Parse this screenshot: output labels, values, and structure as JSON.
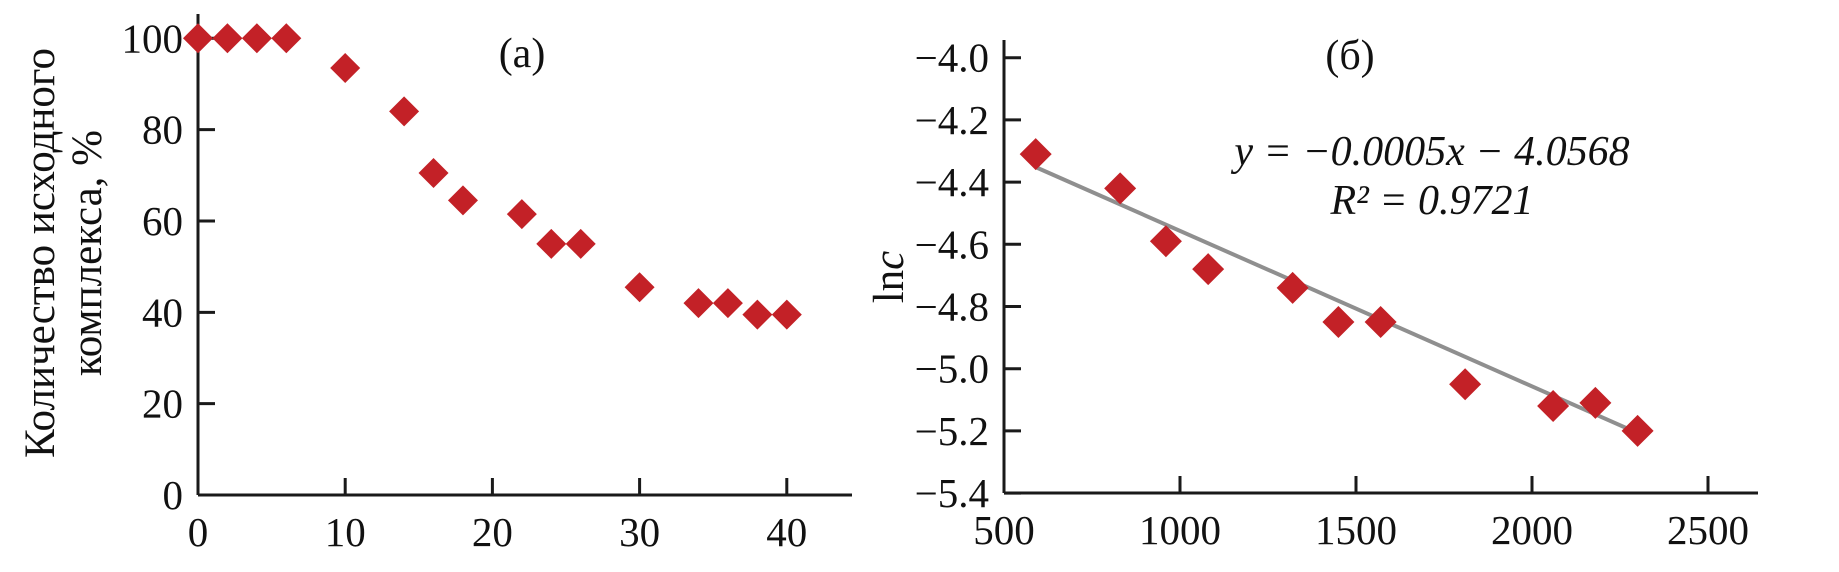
{
  "figure": {
    "background": "#ffffff",
    "point_color": "#c32127",
    "trend_color": "#8f8f8f",
    "axis_color": "#1a1a1a"
  },
  "chart_data": [
    {
      "type": "scatter",
      "title": "(а)",
      "xlabel": "",
      "ylabel": "Количество исходного комплекса, %",
      "ylabel_lines": [
        "Количество исходного",
        "комплекса, %"
      ],
      "x": [
        0,
        2,
        4,
        6,
        10,
        14,
        16,
        18,
        22,
        24,
        26,
        30,
        34,
        36,
        38,
        40
      ],
      "y": [
        100,
        100,
        100,
        100,
        93.5,
        84,
        70.5,
        64.5,
        61.5,
        55,
        55,
        45.5,
        42,
        42,
        39.5,
        39.5
      ],
      "xlim": [
        0,
        44
      ],
      "ylim": [
        0,
        105
      ],
      "x_tick_values": [
        0,
        10,
        20,
        30,
        40
      ],
      "x_tick_labels": [
        "0",
        "10",
        "20",
        "30",
        "40"
      ],
      "y_tick_values": [
        0,
        20,
        40,
        60,
        80,
        100
      ],
      "y_tick_labels": [
        "0",
        "20",
        "40",
        "60",
        "80",
        "100"
      ],
      "grid": false,
      "marker": "diamond"
    },
    {
      "type": "scatter",
      "title": "(б)",
      "xlabel": "",
      "ylabel": "lnc",
      "ylabel_parts": {
        "roman": "ln",
        "italic": "c"
      },
      "x": [
        590,
        830,
        960,
        1080,
        1320,
        1450,
        1570,
        1810,
        2060,
        2180,
        2300
      ],
      "y": [
        -4.31,
        -4.42,
        -4.59,
        -4.68,
        -4.74,
        -4.85,
        -4.85,
        -5.05,
        -5.12,
        -5.11,
        -5.2
      ],
      "xlim": [
        500,
        2640
      ],
      "ylim": [
        -5.4,
        -4.0
      ],
      "x_tick_values": [
        500,
        1000,
        1500,
        2000,
        2500
      ],
      "x_tick_labels": [
        "500",
        "1000",
        "1500",
        "2000",
        "2500"
      ],
      "y_tick_values": [
        -4.0,
        -4.2,
        -4.4,
        -4.6,
        -4.8,
        -5.0,
        -5.2,
        -5.4
      ],
      "y_tick_labels": [
        "−4.0",
        "−4.2",
        "−4.4",
        "−4.6",
        "−4.8",
        "−5.0",
        "−5.2",
        "−5.4"
      ],
      "grid": false,
      "marker": "diamond",
      "trendline": {
        "slope": -0.0005,
        "intercept": -4.0568,
        "x_range": [
          590,
          2310
        ],
        "equation": "y = −0.0005x − 4.0568",
        "r2": "R² = 0.9721"
      }
    }
  ]
}
